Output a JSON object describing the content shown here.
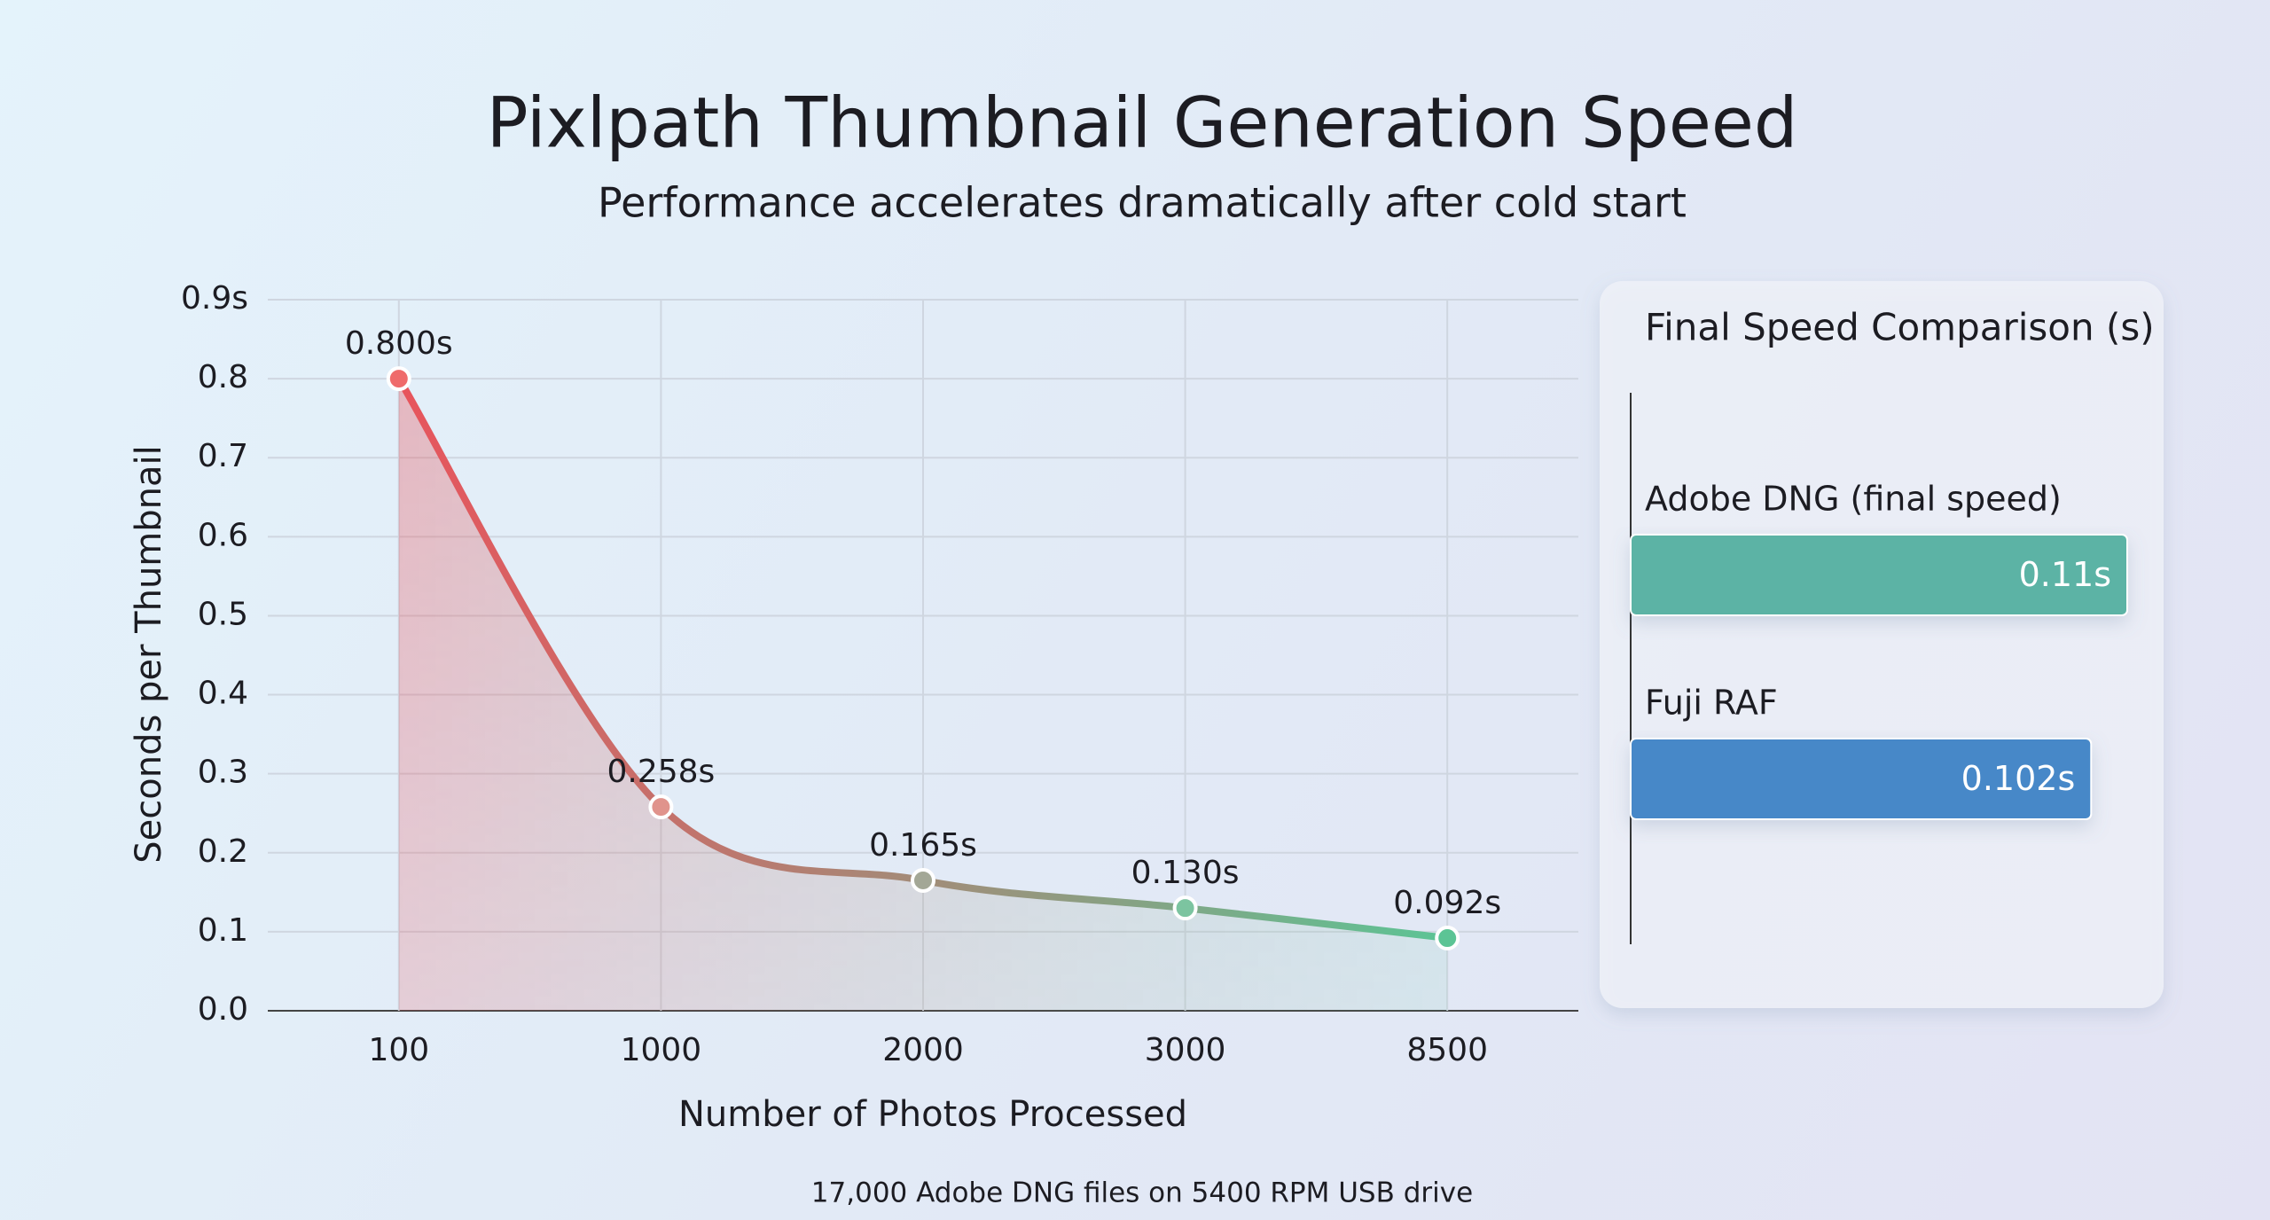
{
  "chart_data": [
    {
      "type": "line",
      "title": "Pixlpath Thumbnail Generation Speed",
      "subtitle": "Performance accelerates dramatically after cold start",
      "x_label": "Number of Photos Processed",
      "y_label": "Seconds per Thumbnail",
      "annotation": "17,000 Adobe DNG files on 5400 RPM USB drive",
      "categories": [
        "100",
        "1000",
        "2000",
        "3000",
        "8500"
      ],
      "values": [
        0.8,
        0.258,
        0.165,
        0.13,
        0.092
      ],
      "value_labels": [
        "0.800s",
        "0.258s",
        "0.165s",
        "0.130s",
        "0.092s"
      ],
      "line_colors": [
        "#e8545c",
        "#5cc495"
      ],
      "point_colors": [
        "#ef6b6b",
        "#e0938c",
        "#a3a796",
        "#7cc4a0",
        "#5cc495"
      ],
      "ylim": [
        0,
        0.9
      ],
      "yticks": [
        {
          "value": 0,
          "label": "0.0"
        },
        0.1,
        0.2,
        0.3,
        0.4,
        0.5,
        0.6,
        0.7,
        0.8,
        {
          "value": 0.9,
          "label": "0.9s"
        }
      ],
      "grid": true
    },
    {
      "type": "hbar",
      "title": "Final Speed Comparison (s)",
      "categories": [
        "Adobe DNG (final speed)",
        "Fuji RAF"
      ],
      "values": [
        0.11,
        0.102
      ],
      "value_labels": [
        "0.11s",
        "0.102s"
      ],
      "colors": [
        "#5bb3a5",
        "#4688c8"
      ],
      "xlim": [
        0,
        0.11
      ]
    }
  ]
}
